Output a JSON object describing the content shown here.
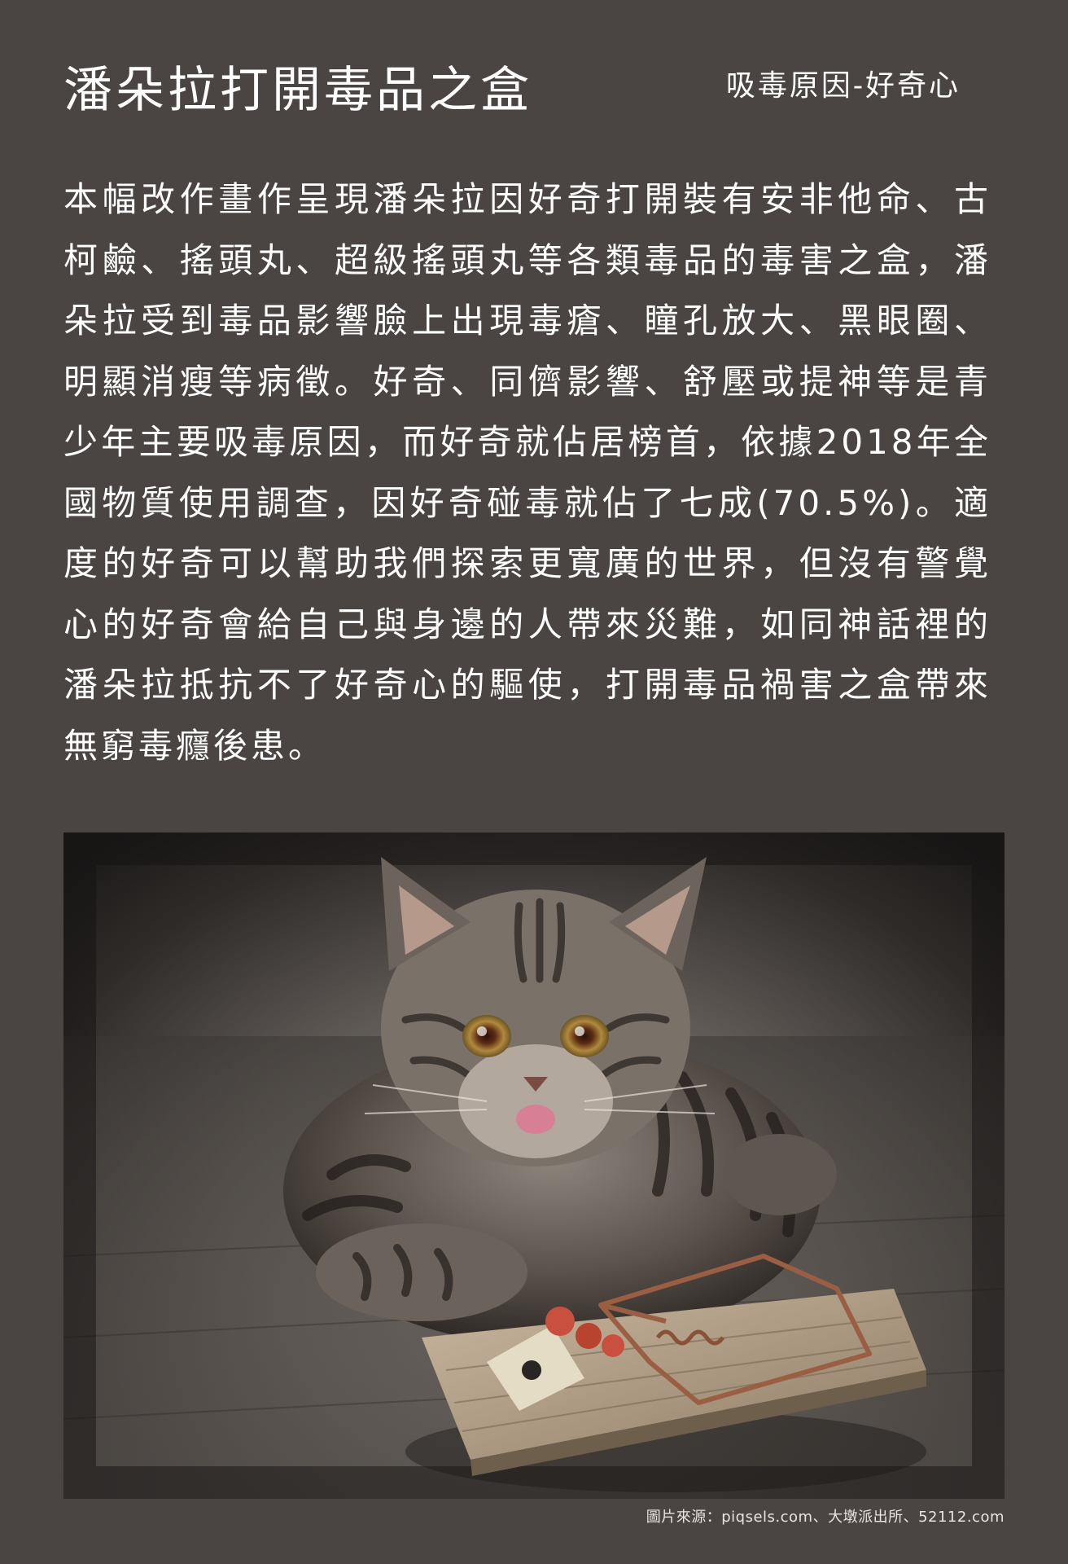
{
  "header": {
    "title": "潘朵拉打開毒品之盒",
    "subtitle": "吸毒原因-好奇心"
  },
  "article": {
    "body": "本幅改作畫作呈現潘朵拉因好奇打開裝有安非他命、古柯鹼、搖頭丸、超級搖頭丸等各類毒品的毒害之盒，潘朵拉受到毒品影響臉上出現毒瘡、瞳孔放大、黑眼圈、明顯消瘦等病徵。好奇、同儕影響、舒壓或提神等是青少年主要吸毒原因，而好奇就佔居榜首，依據2018年全國物質使用調查，因好奇碰毒就佔了七成(70.5%)。適度的好奇可以幫助我們探索更寬廣的世界，但沒有警覺心的好奇會給自己與身邊的人帶來災難，如同神話裡的潘朵拉抵抗不了好奇心的驅使，打開毒品禍害之盒帶來無窮毒癮後患。"
  },
  "image": {
    "subject_icon": "kitten-mousetrap-illustration"
  },
  "footer": {
    "credit": "圖片來源：piqsels.com、大墩派出所、52112.com"
  }
}
